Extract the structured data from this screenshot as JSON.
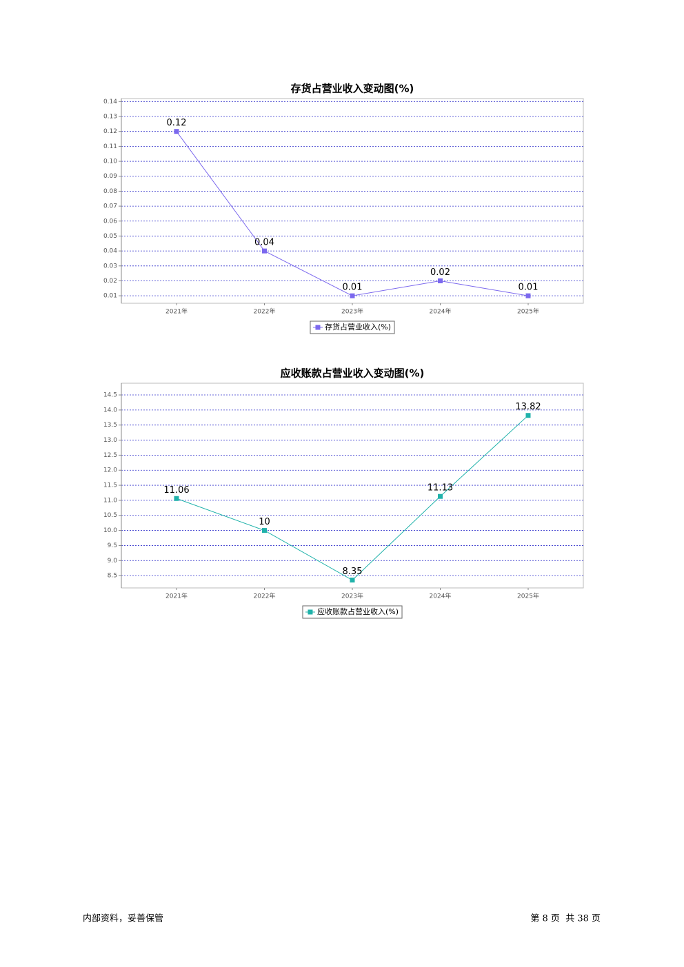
{
  "chart_data": [
    {
      "type": "line",
      "title": "存货占营业收入变动图(%)",
      "categories": [
        "2021年",
        "2022年",
        "2023年",
        "2024年",
        "2025年"
      ],
      "series": [
        {
          "name": "存货占营业收入(%)",
          "color": "#7b68ee",
          "values": [
            0.12,
            0.04,
            0.01,
            0.02,
            0.01
          ]
        }
      ],
      "ylim": [
        0.005,
        0.142
      ],
      "yticks": [
        0.01,
        0.02,
        0.03,
        0.04,
        0.05,
        0.06,
        0.07,
        0.08,
        0.09,
        {
          "value": 0.1,
          "label": "0.10"
        },
        0.11,
        0.12,
        0.13,
        0.14
      ],
      "grid": true,
      "legend": "bottom"
    },
    {
      "type": "line",
      "title": "应收账款占营业收入变动图(%)",
      "categories": [
        "2021年",
        "2022年",
        "2023年",
        "2024年",
        "2025年"
      ],
      "series": [
        {
          "name": "应收账款占营业收入(%)",
          "color": "#20b2aa",
          "values": [
            11.06,
            10,
            8.35,
            11.13,
            13.82
          ]
        }
      ],
      "ylim": [
        8.09,
        14.89
      ],
      "yticks": [
        8.5,
        {
          "value": 9,
          "label": "9.0"
        },
        9.5,
        {
          "value": 10,
          "label": "10.0"
        },
        10.5,
        {
          "value": 11,
          "label": "11.0"
        },
        11.5,
        {
          "value": 12,
          "label": "12.0"
        },
        12.5,
        {
          "value": 13,
          "label": "13.0"
        },
        13.5,
        {
          "value": 14,
          "label": "14.0"
        },
        14.5
      ],
      "grid": true,
      "legend": "bottom"
    }
  ],
  "footer": {
    "left": "内部资料，妥善保管",
    "right": "第 8 页  共 38 页"
  }
}
